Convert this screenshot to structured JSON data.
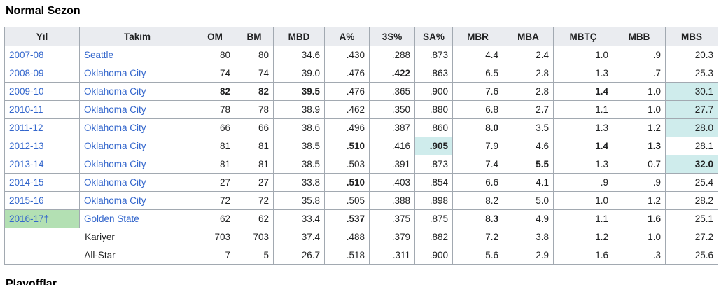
{
  "page": {
    "title": "Normal Sezon",
    "next_section_title": "Playofflar"
  },
  "colors": {
    "link_blue": "#3366cc",
    "header_bg": "#eaecf0",
    "cell_border": "#a2a9b1",
    "highlight_cyan": "#cfecec",
    "highlight_green": "#b3e0b3"
  },
  "table": {
    "columns": [
      "Yıl",
      "Takım",
      "OM",
      "BM",
      "MBD",
      "A%",
      "3S%",
      "SA%",
      "MBR",
      "MBA",
      "MBTÇ",
      "MBB",
      "MBS"
    ],
    "rows": [
      {
        "year": "2007-08",
        "team": "Seattle",
        "stats": [
          {
            "v": "80"
          },
          {
            "v": "80"
          },
          {
            "v": "34.6"
          },
          {
            "v": ".430"
          },
          {
            "v": ".288"
          },
          {
            "v": ".873"
          },
          {
            "v": "4.4"
          },
          {
            "v": "2.4"
          },
          {
            "v": "1.0"
          },
          {
            "v": ".9"
          },
          {
            "v": "20.3"
          }
        ]
      },
      {
        "year": "2008-09",
        "team": "Oklahoma City",
        "stats": [
          {
            "v": "74"
          },
          {
            "v": "74"
          },
          {
            "v": "39.0"
          },
          {
            "v": ".476"
          },
          {
            "v": ".422",
            "bold": true
          },
          {
            "v": ".863"
          },
          {
            "v": "6.5"
          },
          {
            "v": "2.8"
          },
          {
            "v": "1.3"
          },
          {
            "v": ".7"
          },
          {
            "v": "25.3"
          }
        ]
      },
      {
        "year": "2009-10",
        "team": "Oklahoma City",
        "stats": [
          {
            "v": "82",
            "bold": true
          },
          {
            "v": "82",
            "bold": true
          },
          {
            "v": "39.5",
            "bold": true
          },
          {
            "v": ".476"
          },
          {
            "v": ".365"
          },
          {
            "v": ".900"
          },
          {
            "v": "7.6"
          },
          {
            "v": "2.8"
          },
          {
            "v": "1.4",
            "bold": true
          },
          {
            "v": "1.0"
          },
          {
            "v": "30.1",
            "hl": true
          }
        ]
      },
      {
        "year": "2010-11",
        "team": "Oklahoma City",
        "stats": [
          {
            "v": "78"
          },
          {
            "v": "78"
          },
          {
            "v": "38.9"
          },
          {
            "v": ".462"
          },
          {
            "v": ".350"
          },
          {
            "v": ".880"
          },
          {
            "v": "6.8"
          },
          {
            "v": "2.7"
          },
          {
            "v": "1.1"
          },
          {
            "v": "1.0"
          },
          {
            "v": "27.7",
            "hl": true
          }
        ]
      },
      {
        "year": "2011-12",
        "team": "Oklahoma City",
        "stats": [
          {
            "v": "66"
          },
          {
            "v": "66"
          },
          {
            "v": "38.6"
          },
          {
            "v": ".496"
          },
          {
            "v": ".387"
          },
          {
            "v": ".860"
          },
          {
            "v": "8.0",
            "bold": true
          },
          {
            "v": "3.5"
          },
          {
            "v": "1.3"
          },
          {
            "v": "1.2"
          },
          {
            "v": "28.0",
            "hl": true
          }
        ]
      },
      {
        "year": "2012-13",
        "team": "Oklahoma City",
        "stats": [
          {
            "v": "81"
          },
          {
            "v": "81"
          },
          {
            "v": "38.5"
          },
          {
            "v": ".510",
            "bold": true
          },
          {
            "v": ".416"
          },
          {
            "v": ".905",
            "bold": true,
            "hl": true
          },
          {
            "v": "7.9"
          },
          {
            "v": "4.6"
          },
          {
            "v": "1.4",
            "bold": true
          },
          {
            "v": "1.3",
            "bold": true
          },
          {
            "v": "28.1"
          }
        ]
      },
      {
        "year": "2013-14",
        "team": "Oklahoma City",
        "stats": [
          {
            "v": "81"
          },
          {
            "v": "81"
          },
          {
            "v": "38.5"
          },
          {
            "v": ".503"
          },
          {
            "v": ".391"
          },
          {
            "v": ".873"
          },
          {
            "v": "7.4"
          },
          {
            "v": "5.5",
            "bold": true
          },
          {
            "v": "1.3"
          },
          {
            "v": "0.7"
          },
          {
            "v": "32.0",
            "bold": true,
            "hl": true
          }
        ]
      },
      {
        "year": "2014-15",
        "team": "Oklahoma City",
        "stats": [
          {
            "v": "27"
          },
          {
            "v": "27"
          },
          {
            "v": "33.8"
          },
          {
            "v": ".510",
            "bold": true
          },
          {
            "v": ".403"
          },
          {
            "v": ".854"
          },
          {
            "v": "6.6"
          },
          {
            "v": "4.1"
          },
          {
            "v": ".9"
          },
          {
            "v": ".9"
          },
          {
            "v": "25.4"
          }
        ]
      },
      {
        "year": "2015-16",
        "team": "Oklahoma City",
        "stats": [
          {
            "v": "72"
          },
          {
            "v": "72"
          },
          {
            "v": "35.8"
          },
          {
            "v": ".505"
          },
          {
            "v": ".388"
          },
          {
            "v": ".898"
          },
          {
            "v": "8.2"
          },
          {
            "v": "5.0"
          },
          {
            "v": "1.0"
          },
          {
            "v": "1.2"
          },
          {
            "v": "28.2"
          }
        ]
      },
      {
        "year": "2016-17†",
        "team": "Golden State",
        "year_hl": "green",
        "stats": [
          {
            "v": "62"
          },
          {
            "v": "62"
          },
          {
            "v": "33.4"
          },
          {
            "v": ".537",
            "bold": true
          },
          {
            "v": ".375"
          },
          {
            "v": ".875"
          },
          {
            "v": "8.3",
            "bold": true
          },
          {
            "v": "4.9"
          },
          {
            "v": "1.1"
          },
          {
            "v": "1.6",
            "bold": true
          },
          {
            "v": "25.1"
          }
        ]
      },
      {
        "label": "Kariyer",
        "stats": [
          {
            "v": "703"
          },
          {
            "v": "703"
          },
          {
            "v": "37.4"
          },
          {
            "v": ".488"
          },
          {
            "v": ".379"
          },
          {
            "v": ".882"
          },
          {
            "v": "7.2"
          },
          {
            "v": "3.8"
          },
          {
            "v": "1.2"
          },
          {
            "v": "1.0"
          },
          {
            "v": "27.2"
          }
        ]
      },
      {
        "label": "All-Star",
        "stats": [
          {
            "v": "7"
          },
          {
            "v": "5"
          },
          {
            "v": "26.7"
          },
          {
            "v": ".518"
          },
          {
            "v": ".311"
          },
          {
            "v": ".900"
          },
          {
            "v": "5.6"
          },
          {
            "v": "2.9"
          },
          {
            "v": "1.6"
          },
          {
            "v": ".3"
          },
          {
            "v": "25.6"
          }
        ]
      }
    ]
  }
}
